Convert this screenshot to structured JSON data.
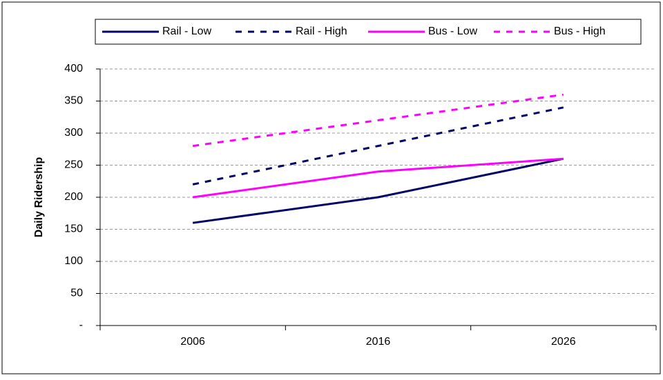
{
  "chart_data": {
    "type": "line",
    "y_label": "Daily Ridership",
    "categories": [
      "2006",
      "2016",
      "2026"
    ],
    "series": [
      {
        "name": "Rail - Low",
        "color": "#000066",
        "style": "solid",
        "values": [
          160,
          200,
          260
        ]
      },
      {
        "name": "Rail - High",
        "color": "#000066",
        "style": "dashed",
        "values": [
          220,
          280,
          340
        ]
      },
      {
        "name": "Bus - Low",
        "color": "#ff00ff",
        "style": "solid",
        "values": [
          200,
          240,
          260
        ]
      },
      {
        "name": "Bus - High",
        "color": "#ff00ff",
        "style": "dashed",
        "values": [
          280,
          320,
          360
        ]
      }
    ],
    "ylim": [
      0,
      400
    ],
    "yticks": [
      {
        "value": 0,
        "label": "-"
      },
      50,
      100,
      150,
      200,
      250,
      300,
      350,
      400
    ],
    "grid": true,
    "legend": "top"
  }
}
